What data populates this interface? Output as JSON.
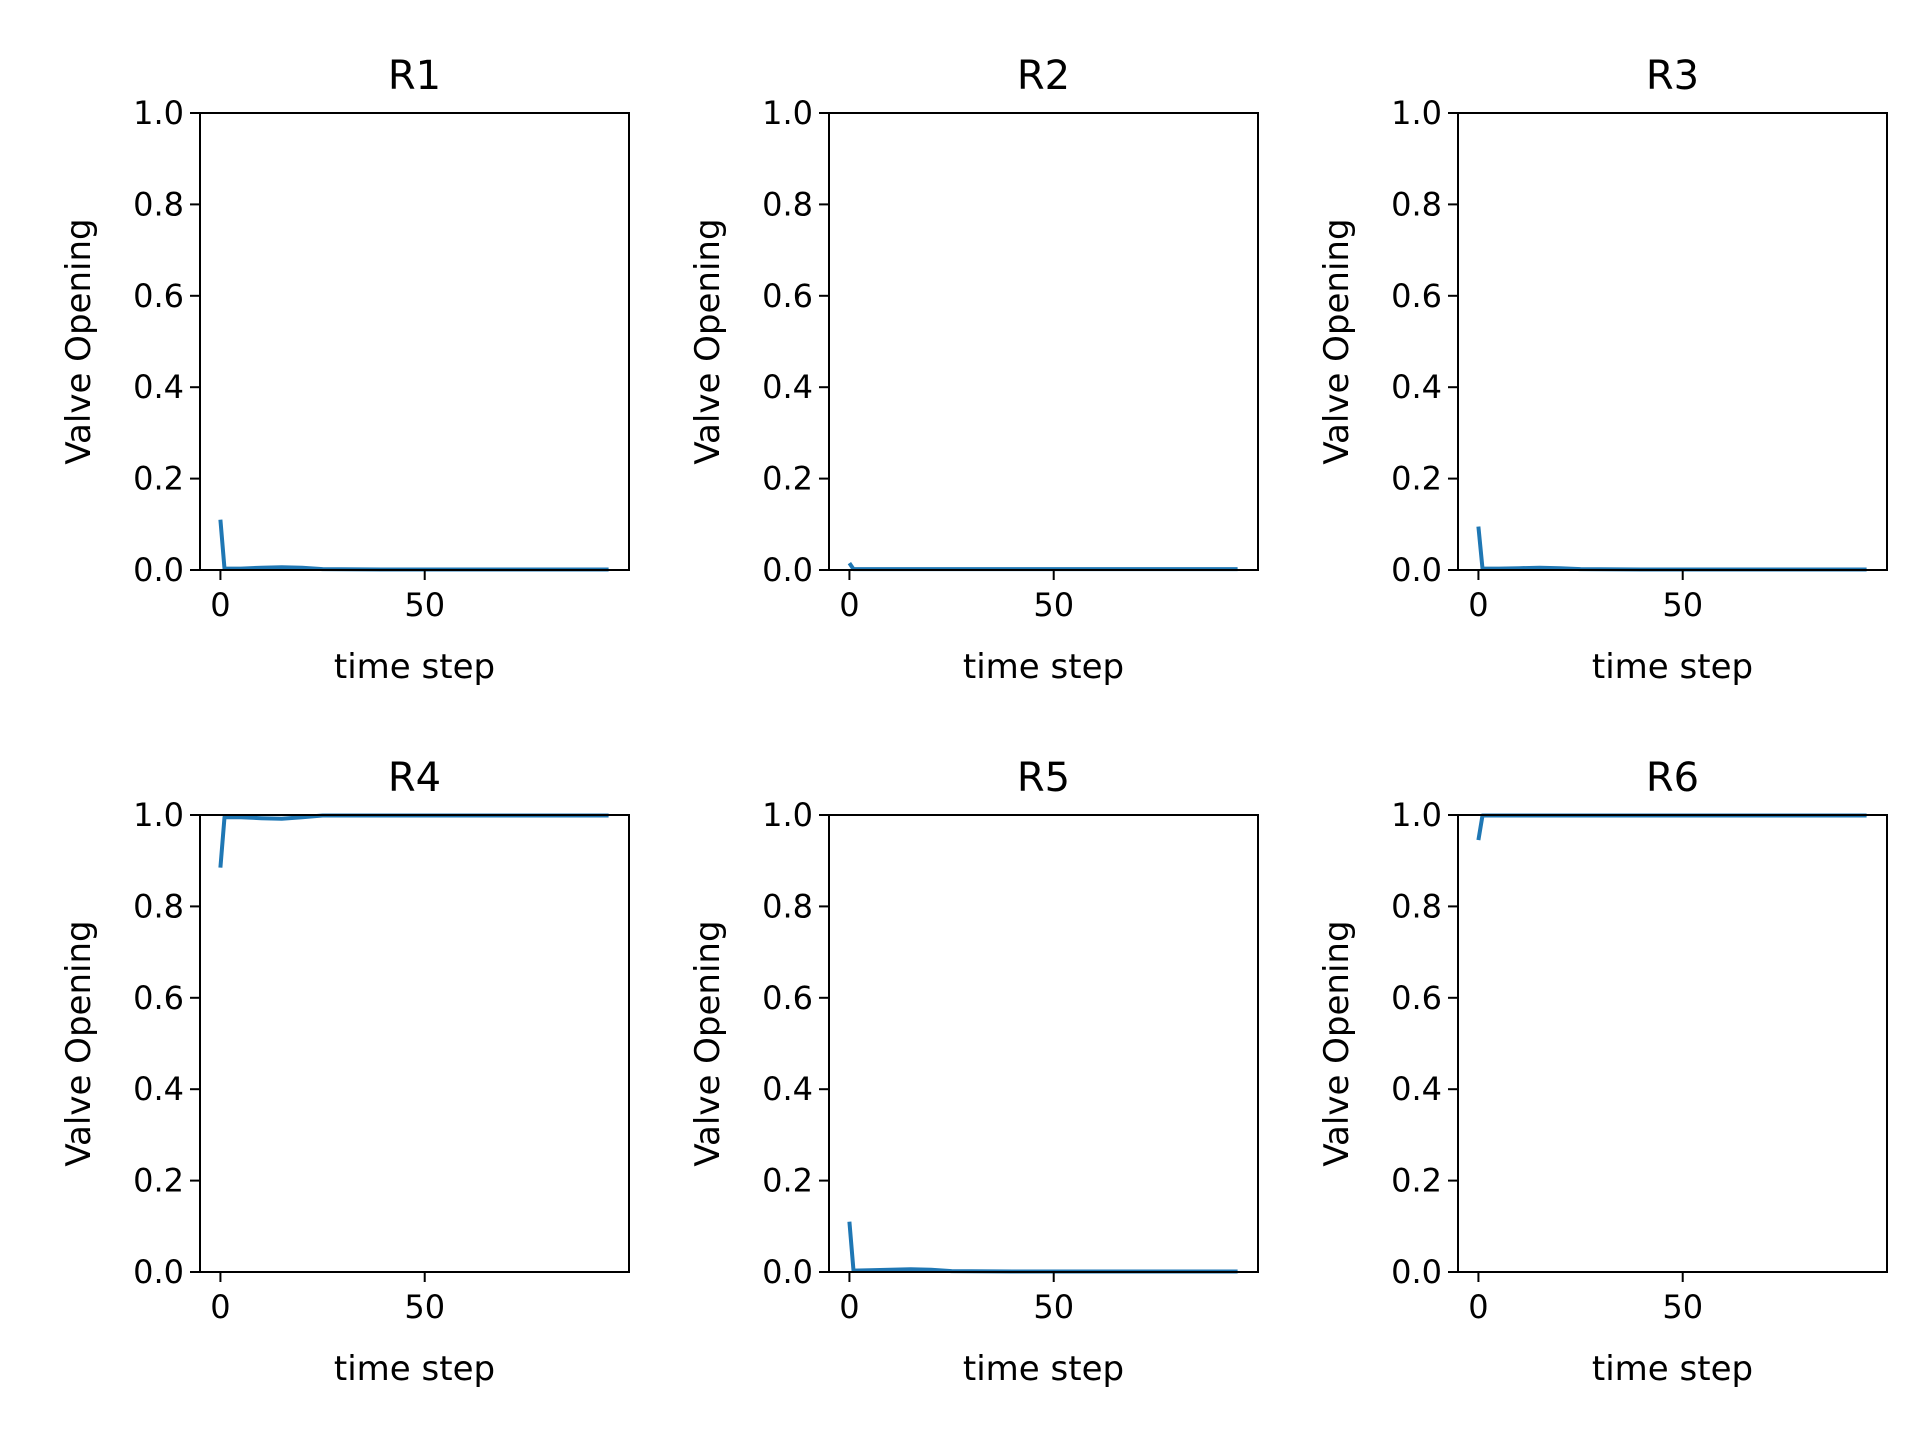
{
  "figure": {
    "background": "#ffffff"
  },
  "chart_data": [
    {
      "type": "line",
      "title": "R1",
      "xlabel": "time step",
      "ylabel": "Valve Opening",
      "xlim": [
        -5,
        100
      ],
      "ylim": [
        0.0,
        1.0
      ],
      "xticks": [
        0,
        50
      ],
      "yticks": [
        0.0,
        0.2,
        0.4,
        0.6,
        0.8,
        1.0
      ],
      "ytick_labels": [
        "0.0",
        "0.2",
        "0.4",
        "0.6",
        "0.8",
        "1.0"
      ],
      "grid": false,
      "series": [
        {
          "color": "#1f77b4",
          "x": [
            0,
            1,
            5,
            10,
            15,
            20,
            25,
            40,
            60,
            80,
            95
          ],
          "y": [
            0.11,
            0.003,
            0.003,
            0.005,
            0.006,
            0.005,
            0.002,
            0.001,
            0.001,
            0.001,
            0.001
          ]
        }
      ]
    },
    {
      "type": "line",
      "title": "R2",
      "xlabel": "time step",
      "ylabel": "Valve Opening",
      "xlim": [
        -5,
        100
      ],
      "ylim": [
        0.0,
        1.0
      ],
      "xticks": [
        0,
        50
      ],
      "yticks": [
        0.0,
        0.2,
        0.4,
        0.6,
        0.8,
        1.0
      ],
      "ytick_labels": [
        "0.0",
        "0.2",
        "0.4",
        "0.6",
        "0.8",
        "1.0"
      ],
      "grid": false,
      "series": [
        {
          "color": "#1f77b4",
          "x": [
            0,
            1,
            5,
            25,
            50,
            75,
            95
          ],
          "y": [
            0.015,
            0.002,
            0.002,
            0.002,
            0.002,
            0.002,
            0.002
          ]
        }
      ]
    },
    {
      "type": "line",
      "title": "R3",
      "xlabel": "time step",
      "ylabel": "Valve Opening",
      "xlim": [
        -5,
        100
      ],
      "ylim": [
        0.0,
        1.0
      ],
      "xticks": [
        0,
        50
      ],
      "yticks": [
        0.0,
        0.2,
        0.4,
        0.6,
        0.8,
        1.0
      ],
      "ytick_labels": [
        "0.0",
        "0.2",
        "0.4",
        "0.6",
        "0.8",
        "1.0"
      ],
      "grid": false,
      "series": [
        {
          "color": "#1f77b4",
          "x": [
            0,
            1,
            5,
            10,
            15,
            20,
            25,
            40,
            60,
            80,
            95
          ],
          "y": [
            0.095,
            0.003,
            0.003,
            0.004,
            0.005,
            0.004,
            0.002,
            0.001,
            0.001,
            0.001,
            0.001
          ]
        }
      ]
    },
    {
      "type": "line",
      "title": "R4",
      "xlabel": "time step",
      "ylabel": "Valve Opening",
      "xlim": [
        -5,
        100
      ],
      "ylim": [
        0.0,
        1.0
      ],
      "xticks": [
        0,
        50
      ],
      "yticks": [
        0.0,
        0.2,
        0.4,
        0.6,
        0.8,
        1.0
      ],
      "ytick_labels": [
        "0.0",
        "0.2",
        "0.4",
        "0.6",
        "0.8",
        "1.0"
      ],
      "grid": false,
      "series": [
        {
          "color": "#1f77b4",
          "x": [
            0,
            1,
            5,
            10,
            15,
            20,
            25,
            40,
            60,
            80,
            95
          ],
          "y": [
            0.885,
            0.995,
            0.995,
            0.993,
            0.992,
            0.995,
            0.999,
            0.999,
            0.999,
            0.999,
            0.999
          ]
        }
      ]
    },
    {
      "type": "line",
      "title": "R5",
      "xlabel": "time step",
      "ylabel": "Valve Opening",
      "xlim": [
        -5,
        100
      ],
      "ylim": [
        0.0,
        1.0
      ],
      "xticks": [
        0,
        50
      ],
      "yticks": [
        0.0,
        0.2,
        0.4,
        0.6,
        0.8,
        1.0
      ],
      "ytick_labels": [
        "0.0",
        "0.2",
        "0.4",
        "0.6",
        "0.8",
        "1.0"
      ],
      "grid": false,
      "series": [
        {
          "color": "#1f77b4",
          "x": [
            0,
            1,
            5,
            10,
            15,
            20,
            25,
            40,
            60,
            80,
            95
          ],
          "y": [
            0.11,
            0.003,
            0.004,
            0.005,
            0.006,
            0.005,
            0.002,
            0.001,
            0.001,
            0.001,
            0.001
          ]
        }
      ]
    },
    {
      "type": "line",
      "title": "R6",
      "xlabel": "time step",
      "ylabel": "Valve Opening",
      "xlim": [
        -5,
        100
      ],
      "ylim": [
        0.0,
        1.0
      ],
      "xticks": [
        0,
        50
      ],
      "yticks": [
        0.0,
        0.2,
        0.4,
        0.6,
        0.8,
        1.0
      ],
      "ytick_labels": [
        "0.0",
        "0.2",
        "0.4",
        "0.6",
        "0.8",
        "1.0"
      ],
      "grid": false,
      "series": [
        {
          "color": "#1f77b4",
          "x": [
            0,
            1,
            5,
            25,
            50,
            75,
            95
          ],
          "y": [
            0.945,
            0.999,
            0.999,
            0.999,
            0.999,
            0.999,
            0.999
          ]
        }
      ]
    }
  ]
}
